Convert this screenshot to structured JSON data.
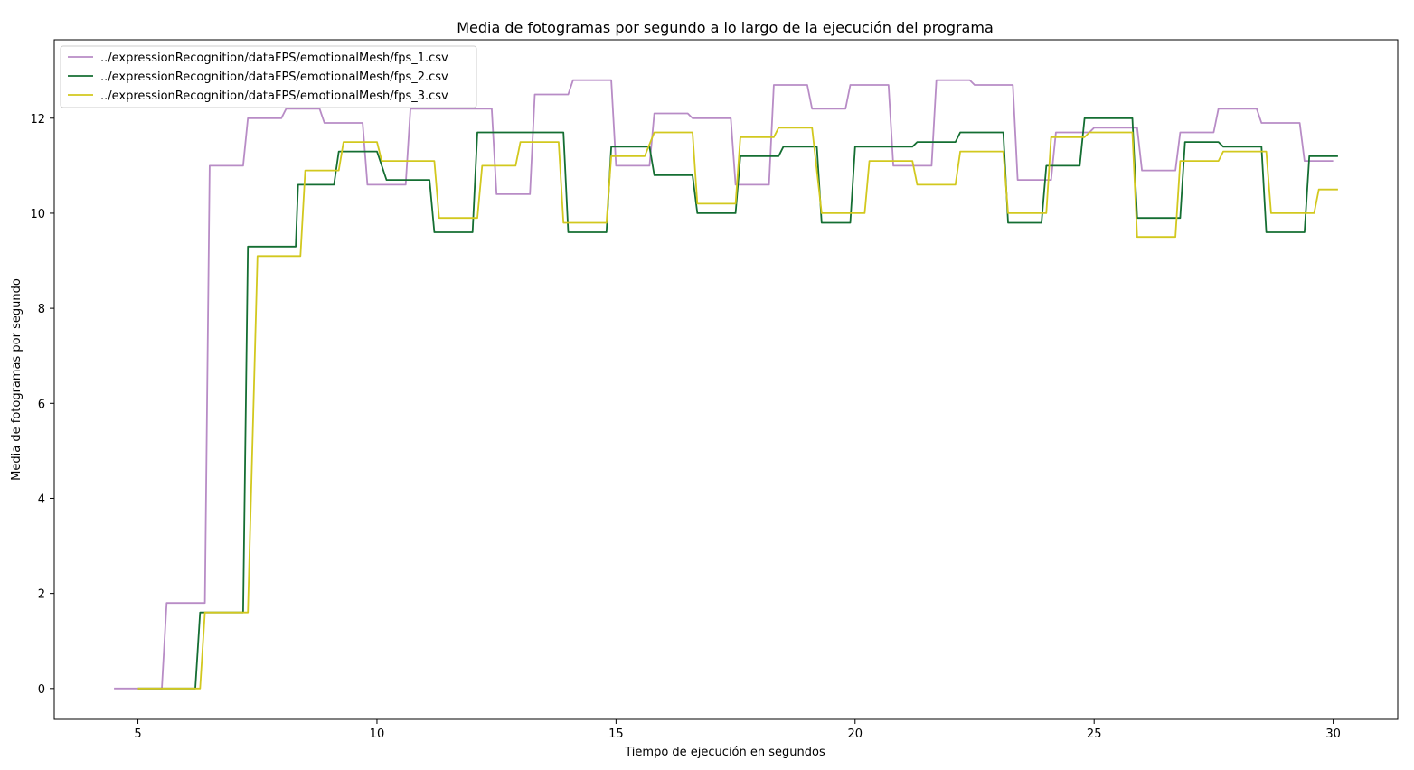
{
  "chart_data": {
    "type": "line",
    "title": "Media de fotogramas por segundo a lo largo de la ejecución del programa",
    "xlabel": "Tiempo de ejecución en segundos",
    "ylabel": "Media de fotogramas por segundo",
    "xlim": [
      3.25,
      31.35
    ],
    "ylim": [
      -0.65,
      13.65
    ],
    "xticks": [
      5,
      10,
      15,
      20,
      25,
      30
    ],
    "yticks": [
      0,
      2,
      4,
      6,
      8,
      10,
      12
    ],
    "grid": false,
    "legend_position": "top-left",
    "series": [
      {
        "name": "../expressionRecognition/dataFPS/emotionalMesh/fps_1.csv",
        "color": "#b88cc6",
        "points": [
          [
            4.5,
            0
          ],
          [
            5.5,
            0
          ],
          [
            5.6,
            1.8
          ],
          [
            6.4,
            1.8
          ],
          [
            6.5,
            11.0
          ],
          [
            7.2,
            11.0
          ],
          [
            7.3,
            12.0
          ],
          [
            8.0,
            12.0
          ],
          [
            8.1,
            12.2
          ],
          [
            8.8,
            12.2
          ],
          [
            8.9,
            11.9
          ],
          [
            9.7,
            11.9
          ],
          [
            9.8,
            10.6
          ],
          [
            10.6,
            10.6
          ],
          [
            10.7,
            12.2
          ],
          [
            11.5,
            12.2
          ],
          [
            11.6,
            12.2
          ],
          [
            12.4,
            12.2
          ],
          [
            12.5,
            10.4
          ],
          [
            13.2,
            10.4
          ],
          [
            13.3,
            12.5
          ],
          [
            14.0,
            12.5
          ],
          [
            14.1,
            12.8
          ],
          [
            14.9,
            12.8
          ],
          [
            15.0,
            11.0
          ],
          [
            15.7,
            11.0
          ],
          [
            15.8,
            12.1
          ],
          [
            16.5,
            12.1
          ],
          [
            16.6,
            12.0
          ],
          [
            17.4,
            12.0
          ],
          [
            17.5,
            10.6
          ],
          [
            18.2,
            10.6
          ],
          [
            18.3,
            12.7
          ],
          [
            19.0,
            12.7
          ],
          [
            19.1,
            12.2
          ],
          [
            19.8,
            12.2
          ],
          [
            19.9,
            12.7
          ],
          [
            20.7,
            12.7
          ],
          [
            20.8,
            11.0
          ],
          [
            21.6,
            11.0
          ],
          [
            21.7,
            12.8
          ],
          [
            22.4,
            12.8
          ],
          [
            22.5,
            12.7
          ],
          [
            23.3,
            12.7
          ],
          [
            23.4,
            10.7
          ],
          [
            24.1,
            10.7
          ],
          [
            24.2,
            11.7
          ],
          [
            24.9,
            11.7
          ],
          [
            25.0,
            11.8
          ],
          [
            25.9,
            11.8
          ],
          [
            26.0,
            10.9
          ],
          [
            26.7,
            10.9
          ],
          [
            26.8,
            11.7
          ],
          [
            27.5,
            11.7
          ],
          [
            27.6,
            12.2
          ],
          [
            28.4,
            12.2
          ],
          [
            28.5,
            11.9
          ],
          [
            29.3,
            11.9
          ],
          [
            29.4,
            11.1
          ],
          [
            30.0,
            11.1
          ]
        ]
      },
      {
        "name": "../expressionRecognition/dataFPS/emotionalMesh/fps_2.csv",
        "color": "#146e32",
        "points": [
          [
            5.0,
            0
          ],
          [
            6.2,
            0
          ],
          [
            6.3,
            1.6
          ],
          [
            7.2,
            1.6
          ],
          [
            7.3,
            9.3
          ],
          [
            8.3,
            9.3
          ],
          [
            8.35,
            10.6
          ],
          [
            9.1,
            10.6
          ],
          [
            9.2,
            11.3
          ],
          [
            10.0,
            11.3
          ],
          [
            10.2,
            10.7
          ],
          [
            11.1,
            10.7
          ],
          [
            11.2,
            9.6
          ],
          [
            12.0,
            9.6
          ],
          [
            12.1,
            11.7
          ],
          [
            13.9,
            11.7
          ],
          [
            14.0,
            9.6
          ],
          [
            14.8,
            9.6
          ],
          [
            14.9,
            11.4
          ],
          [
            15.7,
            11.4
          ],
          [
            15.8,
            10.8
          ],
          [
            16.6,
            10.8
          ],
          [
            16.7,
            10.0
          ],
          [
            17.5,
            10.0
          ],
          [
            17.6,
            11.2
          ],
          [
            18.4,
            11.2
          ],
          [
            18.5,
            11.4
          ],
          [
            19.2,
            11.4
          ],
          [
            19.3,
            9.8
          ],
          [
            19.9,
            9.8
          ],
          [
            20.0,
            11.4
          ],
          [
            21.2,
            11.4
          ],
          [
            21.3,
            11.5
          ],
          [
            22.1,
            11.5
          ],
          [
            22.2,
            11.7
          ],
          [
            23.1,
            11.7
          ],
          [
            23.2,
            9.8
          ],
          [
            23.9,
            9.8
          ],
          [
            24.0,
            11.0
          ],
          [
            24.7,
            11.0
          ],
          [
            24.8,
            12.0
          ],
          [
            25.8,
            12.0
          ],
          [
            25.9,
            9.9
          ],
          [
            26.8,
            9.9
          ],
          [
            26.9,
            11.5
          ],
          [
            27.6,
            11.5
          ],
          [
            27.7,
            11.4
          ],
          [
            28.5,
            11.4
          ],
          [
            28.6,
            9.6
          ],
          [
            29.4,
            9.6
          ],
          [
            29.5,
            11.2
          ],
          [
            30.1,
            11.2
          ]
        ]
      },
      {
        "name": "../expressionRecognition/dataFPS/emotionalMesh/fps_3.csv",
        "color": "#d2c81e",
        "points": [
          [
            5.0,
            0
          ],
          [
            6.3,
            0
          ],
          [
            6.4,
            1.6
          ],
          [
            7.3,
            1.6
          ],
          [
            7.5,
            9.1
          ],
          [
            8.4,
            9.1
          ],
          [
            8.5,
            10.9
          ],
          [
            9.2,
            10.9
          ],
          [
            9.3,
            11.5
          ],
          [
            10.0,
            11.5
          ],
          [
            10.1,
            11.1
          ],
          [
            11.2,
            11.1
          ],
          [
            11.3,
            9.9
          ],
          [
            12.1,
            9.9
          ],
          [
            12.2,
            11.0
          ],
          [
            12.9,
            11.0
          ],
          [
            13.0,
            11.5
          ],
          [
            13.8,
            11.5
          ],
          [
            13.9,
            9.8
          ],
          [
            14.8,
            9.8
          ],
          [
            14.9,
            11.2
          ],
          [
            15.6,
            11.2
          ],
          [
            15.8,
            11.7
          ],
          [
            16.6,
            11.7
          ],
          [
            16.7,
            10.2
          ],
          [
            17.5,
            10.2
          ],
          [
            17.6,
            11.6
          ],
          [
            18.3,
            11.6
          ],
          [
            18.4,
            11.8
          ],
          [
            19.1,
            11.8
          ],
          [
            19.3,
            10.0
          ],
          [
            20.2,
            10.0
          ],
          [
            20.3,
            11.1
          ],
          [
            21.2,
            11.1
          ],
          [
            21.3,
            10.6
          ],
          [
            22.1,
            10.6
          ],
          [
            22.2,
            11.3
          ],
          [
            23.1,
            11.3
          ],
          [
            23.2,
            10.0
          ],
          [
            24.0,
            10.0
          ],
          [
            24.1,
            11.6
          ],
          [
            24.8,
            11.6
          ],
          [
            24.9,
            11.7
          ],
          [
            25.8,
            11.7
          ],
          [
            25.9,
            9.5
          ],
          [
            26.7,
            9.5
          ],
          [
            26.8,
            11.1
          ],
          [
            27.6,
            11.1
          ],
          [
            27.7,
            11.3
          ],
          [
            28.6,
            11.3
          ],
          [
            28.7,
            10.0
          ],
          [
            29.6,
            10.0
          ],
          [
            29.7,
            10.5
          ],
          [
            30.1,
            10.5
          ]
        ]
      }
    ]
  }
}
